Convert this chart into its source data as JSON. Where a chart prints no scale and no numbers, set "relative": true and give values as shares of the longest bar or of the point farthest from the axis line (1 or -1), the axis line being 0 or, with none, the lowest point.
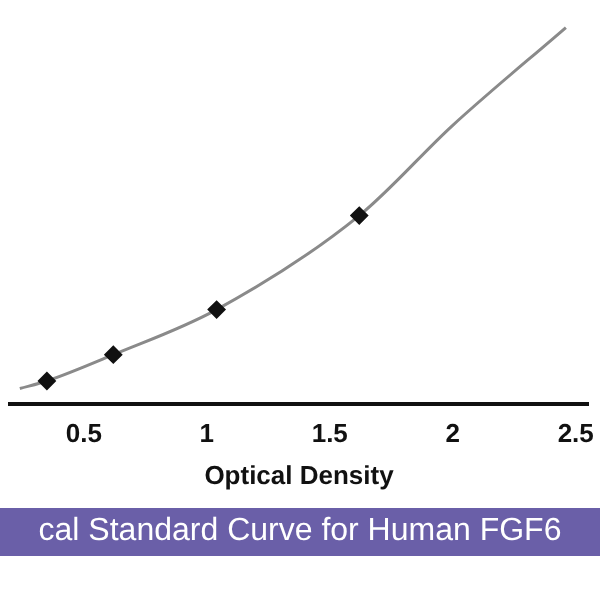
{
  "chart_data": {
    "type": "scatter",
    "title": "cal Standard Curve for Human FGF6",
    "xlabel": "Optical Density",
    "relative": true,
    "xlim": [
      0.2,
      2.55
    ],
    "xticks": [
      0.5,
      1,
      1.5,
      2,
      2.5
    ],
    "grid": false,
    "legend": false,
    "marker": "diamond",
    "series": [
      {
        "type": "line",
        "marker": "none",
        "color": "#8a8a8a",
        "x": [
          0.24,
          0.35,
          0.62,
          1.04,
          1.62,
          2.0,
          2.46
        ],
        "values": [
          0.04,
          0.06,
          0.13,
          0.25,
          0.5,
          0.74,
          1
        ]
      },
      {
        "color": "#111111",
        "x": [
          0.35,
          0.62,
          1.04,
          1.62
        ],
        "values": [
          0.06,
          0.13,
          0.25,
          0.5
        ]
      }
    ]
  }
}
